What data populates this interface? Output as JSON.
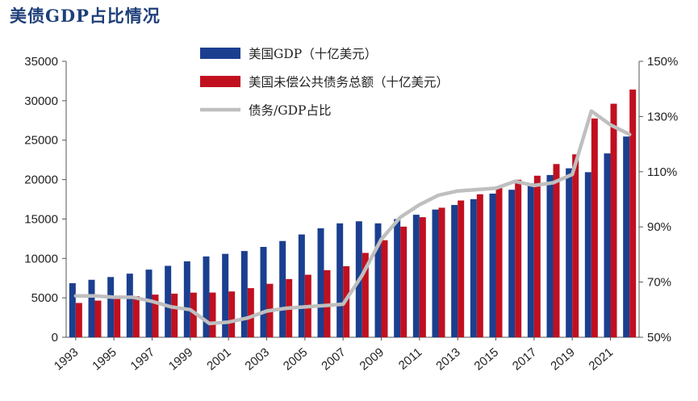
{
  "title": "美债GDP占比情况",
  "chart_data": {
    "type": "bar",
    "x": [
      1993,
      1994,
      1995,
      1996,
      1997,
      1998,
      1999,
      2000,
      2001,
      2002,
      2003,
      2004,
      2005,
      2006,
      2007,
      2008,
      2009,
      2010,
      2011,
      2012,
      2013,
      2014,
      2015,
      2016,
      2017,
      2018,
      2019,
      2020,
      2021,
      2022
    ],
    "xtick_labels": [
      "1993",
      "1995",
      "1997",
      "1999",
      "2001",
      "2003",
      "2005",
      "2007",
      "2009",
      "2011",
      "2013",
      "2015",
      "2017",
      "2019",
      "2021"
    ],
    "series": [
      {
        "name": "美国GDP（十亿美元）",
        "axis": "left",
        "kind": "bar",
        "color": "#1b3f8f",
        "values": [
          6860,
          7290,
          7640,
          8070,
          8580,
          9060,
          9630,
          10250,
          10580,
          10940,
          11460,
          12210,
          13040,
          13820,
          14450,
          14710,
          14450,
          14990,
          15540,
          16200,
          16780,
          17520,
          18220,
          18710,
          19520,
          20580,
          21430,
          20940,
          23320,
          25460
        ]
      },
      {
        "name": "美国未偿公共债务总额（十亿美元）",
        "axis": "left",
        "kind": "bar",
        "color": "#c01020",
        "values": [
          4350,
          4650,
          4970,
          5220,
          5410,
          5530,
          5660,
          5670,
          5810,
          6230,
          6780,
          7380,
          7930,
          8510,
          9010,
          10700,
          12310,
          14030,
          15230,
          16430,
          17350,
          18140,
          18920,
          19980,
          20490,
          21970,
          23200,
          27750,
          29620,
          31420
        ]
      },
      {
        "name": "债务/GDP占比",
        "axis": "right",
        "kind": "line",
        "color": "#bfbfbf",
        "values": [
          65,
          65,
          64.5,
          64.5,
          63,
          61,
          60,
          55,
          55.5,
          57,
          59.5,
          60.5,
          61,
          61.5,
          62,
          72.5,
          85.5,
          93.5,
          98,
          101.5,
          103,
          103.5,
          104,
          106.5,
          105,
          106,
          109,
          132,
          127,
          123.5
        ]
      }
    ],
    "left_axis": {
      "ylim": [
        0,
        35000
      ],
      "ticks": [
        "0",
        "5000",
        "10000",
        "15000",
        "20000",
        "25000",
        "30000",
        "35000"
      ]
    },
    "right_axis": {
      "ylim": [
        50,
        150
      ],
      "ticks": [
        "50%",
        "70%",
        "90%",
        "110%",
        "130%",
        "150%"
      ]
    },
    "legend_placement": "top-left"
  }
}
